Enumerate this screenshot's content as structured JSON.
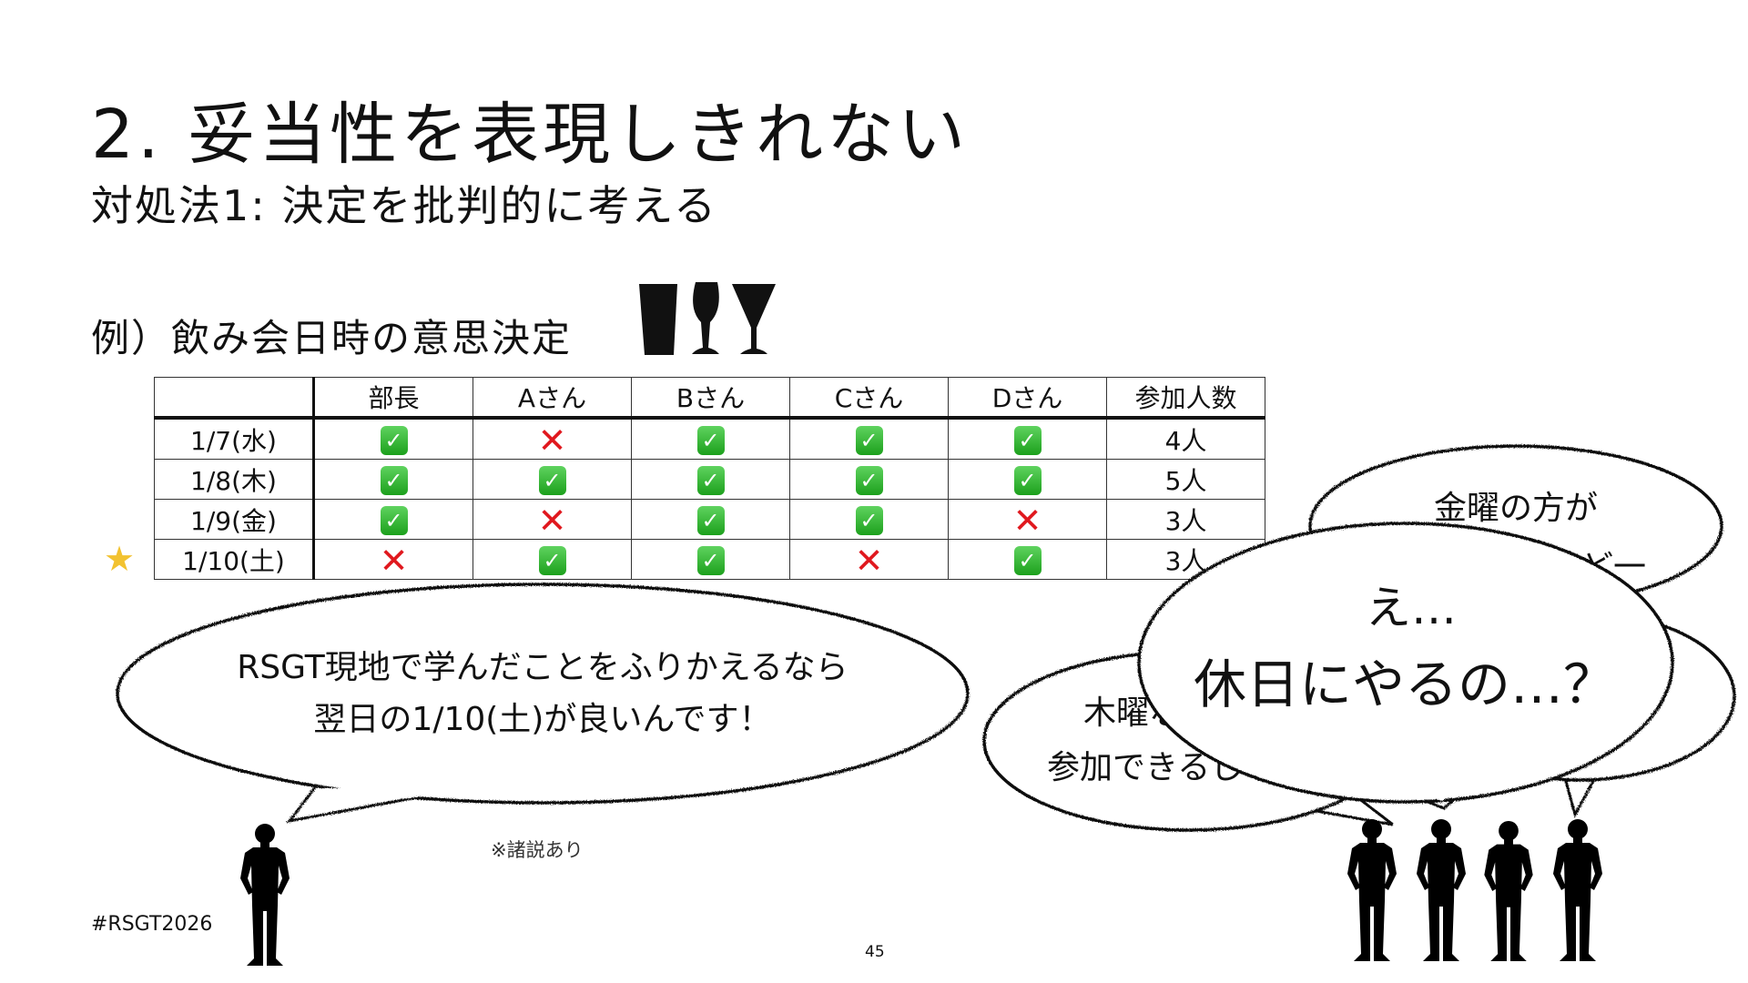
{
  "slide": {
    "title": "2. 妥当性を表現しきれない",
    "subtitle": "対処法1: 決定を批判的に考える",
    "example": "例）飲み会日時の意思決定",
    "hashtag": "#RSGT2026",
    "page_number": "45",
    "note": "※諸説あり"
  },
  "icons": {
    "glasses": "drink-glasses-icon",
    "star": "star-icon",
    "check": "check-mark-icon",
    "cross": "cross-mark-icon"
  },
  "colors": {
    "check": "#1ca01c",
    "cross": "#e0181e",
    "star": "#f2c230"
  },
  "table": {
    "headers": [
      "",
      "部長",
      "Aさん",
      "Bさん",
      "Cさん",
      "Dさん",
      "参加人数"
    ],
    "rows": [
      {
        "date": "1/7(水)",
        "marks": [
          true,
          false,
          true,
          true,
          true
        ],
        "count": "4人",
        "starred": false
      },
      {
        "date": "1/8(木)",
        "marks": [
          true,
          true,
          true,
          true,
          true
        ],
        "count": "5人",
        "starred": false
      },
      {
        "date": "1/9(金)",
        "marks": [
          true,
          false,
          true,
          true,
          false
        ],
        "count": "3人",
        "starred": false
      },
      {
        "date": "1/10(土)",
        "marks": [
          false,
          true,
          true,
          false,
          true
        ],
        "count": "3人",
        "starred": true
      }
    ]
  },
  "bubbles": {
    "manager": [
      "RSGT現地で学んだことをふりかえるなら",
      "翌日の1/10(土)が良いんです！"
    ],
    "friday": [
      "金曜の方が",
      "ど一"
    ],
    "right": [
      "？"
    ],
    "thursday": [
      "木曜な",
      "参加できるじゃ"
    ],
    "main": [
      "え…",
      "休日にやるの…？"
    ]
  }
}
